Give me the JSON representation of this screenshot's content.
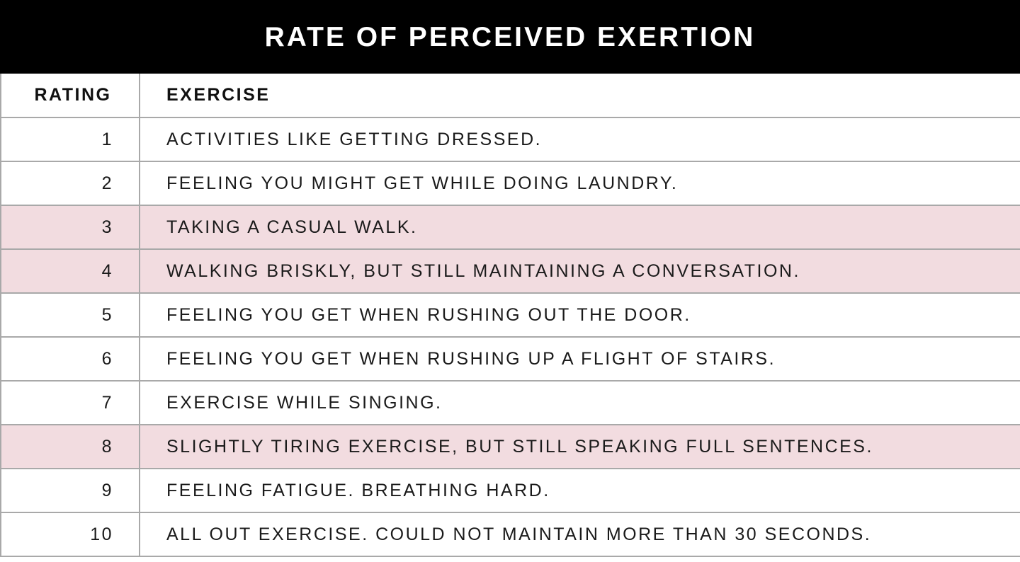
{
  "title": "RATE OF PERCEIVED EXERTION",
  "colors": {
    "header_background": "#000000",
    "header_text": "#ffffff",
    "highlight_row": "#f2dce0",
    "grid_line": "#a9a9a9"
  },
  "columns": {
    "rating": "RATING",
    "exercise": "EXERCISE"
  },
  "rows": [
    {
      "rating": "1",
      "exercise": "ACTIVITIES LIKE GETTING DRESSED.",
      "highlighted": false
    },
    {
      "rating": "2",
      "exercise": "FEELING YOU MIGHT GET WHILE DOING LAUNDRY.",
      "highlighted": false
    },
    {
      "rating": "3",
      "exercise": "TAKING A CASUAL WALK.",
      "highlighted": true
    },
    {
      "rating": "4",
      "exercise": "WALKING BRISKLY, BUT STILL MAINTAINING A CONVERSATION.",
      "highlighted": true
    },
    {
      "rating": "5",
      "exercise": "FEELING YOU GET WHEN RUSHING OUT THE DOOR.",
      "highlighted": false
    },
    {
      "rating": "6",
      "exercise": "FEELING YOU GET WHEN RUSHING UP A FLIGHT OF STAIRS.",
      "highlighted": false
    },
    {
      "rating": "7",
      "exercise": "EXERCISE WHILE SINGING.",
      "highlighted": false
    },
    {
      "rating": "8",
      "exercise": "SLIGHTLY TIRING EXERCISE, BUT STILL SPEAKING FULL SENTENCES.",
      "highlighted": true
    },
    {
      "rating": "9",
      "exercise": "FEELING FATIGUE. BREATHING HARD.",
      "highlighted": false
    },
    {
      "rating": "10",
      "exercise": "ALL OUT EXERCISE. COULD NOT MAINTAIN MORE THAN 30 SECONDS.",
      "highlighted": false
    }
  ]
}
